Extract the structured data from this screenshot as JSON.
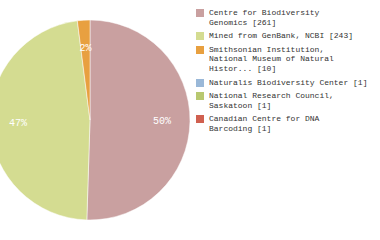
{
  "chart_data": {
    "type": "pie",
    "categories": [
      "Centre for Biodiversity\nGenomics [261]",
      "Mined from GenBank, NCBI [243]",
      "Smithsonian Institution,\nNational Museum of Natural\nHistor... [10]",
      "Naturalis Biodiversity Center [1]",
      "National Research Council,\nSaskatoon [1]",
      "Canadian Centre for DNA\nBarcoding [1]"
    ],
    "values": [
      50,
      47,
      2,
      0,
      0,
      0
    ],
    "value_labels": [
      "50%",
      "47%",
      "2%",
      null,
      null,
      null
    ],
    "colors": [
      "#c9a0a0",
      "#d4dc91",
      "#e8a040",
      "#9ab8d8",
      "#b8c870",
      "#d06050"
    ],
    "data_labels": true,
    "legend": "right"
  }
}
